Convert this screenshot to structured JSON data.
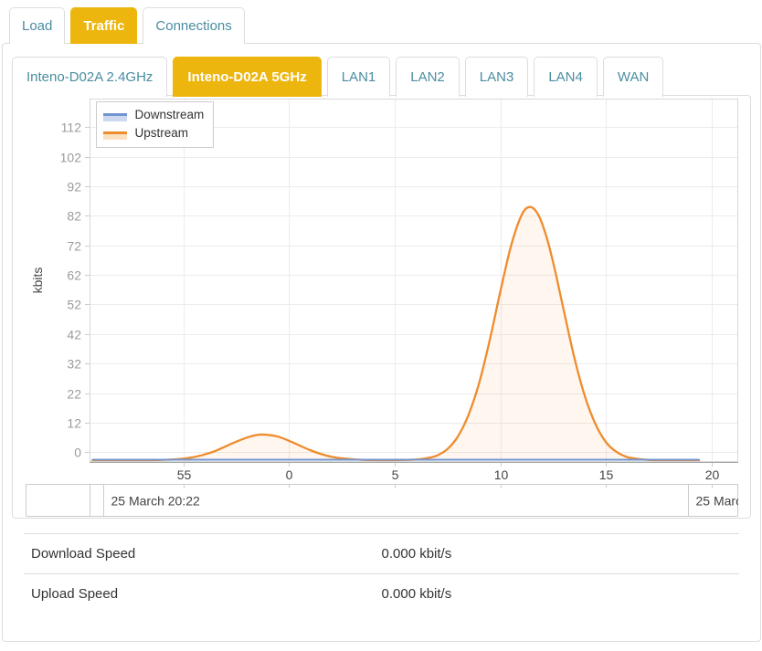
{
  "main_tabs": {
    "items": [
      {
        "label": "Load",
        "active": false
      },
      {
        "label": "Traffic",
        "active": true
      },
      {
        "label": "Connections",
        "active": false
      }
    ]
  },
  "interface_tabs": {
    "items": [
      {
        "label": "Inteno-D02A 2.4GHz",
        "active": false
      },
      {
        "label": "Inteno-D02A 5GHz",
        "active": true
      },
      {
        "label": "LAN1",
        "active": false
      },
      {
        "label": "LAN2",
        "active": false
      },
      {
        "label": "LAN3",
        "active": false
      },
      {
        "label": "LAN4",
        "active": false
      },
      {
        "label": "WAN",
        "active": false
      }
    ]
  },
  "colors": {
    "accent_yellow": "#edb60e",
    "tab_text_teal": "#4a8da0",
    "downstream": "#7295d0",
    "downstream_tint": "#ccd9ef",
    "upstream": "#ef8c2d",
    "upstream_tint": "#fbdfc2",
    "upstream_area_fill": "rgba(239,140,45,0.08)",
    "grid": "#ececec",
    "plot_border": "#d8d8d8",
    "axis_line": "#a6a6a6",
    "tick_mark": "#cccccc",
    "y_label_text": "#9b9b9b",
    "x_label_text": "#444444"
  },
  "chart_data": {
    "type": "area",
    "title": "",
    "ylabel": "kbits",
    "y_ticks": [
      0,
      12,
      22,
      32,
      42,
      52,
      62,
      72,
      82,
      92,
      102,
      112
    ],
    "ylim_display": "0 to 112 kbits, equally spaced ticks",
    "x_ticks": [
      {
        "label": "55",
        "t": -5
      },
      {
        "label": "0",
        "t": 0
      },
      {
        "label": "5",
        "t": 5
      },
      {
        "label": "10",
        "t": 10
      },
      {
        "label": "15",
        "t": 15
      },
      {
        "label": "20",
        "t": 20
      }
    ],
    "x_unit": "minutes",
    "date_cells": [
      {
        "label": "",
        "start_t": -9.43
      },
      {
        "label": "25 March 20:22",
        "start_t": -8.79
      },
      {
        "label": "25 Marc",
        "start_t": 18.87
      }
    ],
    "legend": {
      "position": "top-left",
      "entries": [
        "Downstream",
        "Upstream"
      ]
    },
    "series": [
      {
        "name": "Downstream",
        "color": "#7295d0",
        "points": [
          [
            -9.3,
            0
          ],
          [
            19.4,
            0
          ]
        ]
      },
      {
        "name": "Upstream",
        "color": "#ef8c2d",
        "points": [
          [
            -9.3,
            0
          ],
          [
            -8.5,
            0
          ],
          [
            -8,
            0
          ],
          [
            -7.5,
            0
          ],
          [
            -7,
            0
          ],
          [
            -6.5,
            0
          ],
          [
            -6,
            0.1
          ],
          [
            -5.5,
            0.2
          ],
          [
            -5,
            0.5
          ],
          [
            -4.5,
            1
          ],
          [
            -4,
            1.8
          ],
          [
            -3.5,
            2.9
          ],
          [
            -3,
            4.4
          ],
          [
            -2.5,
            5.9
          ],
          [
            -2,
            7.2
          ],
          [
            -1.5,
            8.1
          ],
          [
            -1,
            8.1
          ],
          [
            -0.5,
            7.5
          ],
          [
            0,
            6.2
          ],
          [
            0.5,
            4.7
          ],
          [
            1,
            3.2
          ],
          [
            1.5,
            2
          ],
          [
            2,
            1.1
          ],
          [
            2.5,
            0.6
          ],
          [
            3,
            0.3
          ],
          [
            3.5,
            0.1
          ],
          [
            4,
            0
          ],
          [
            4.5,
            0
          ],
          [
            5,
            0
          ],
          [
            5.5,
            0.1
          ],
          [
            6,
            0.2
          ],
          [
            6.5,
            0.6
          ],
          [
            7,
            1.5
          ],
          [
            7.5,
            3.6
          ],
          [
            8,
            7.7
          ],
          [
            8.5,
            14.8
          ],
          [
            9,
            25.6
          ],
          [
            9.5,
            40.1
          ],
          [
            10,
            56.5
          ],
          [
            10.5,
            71.8
          ],
          [
            11,
            82.2
          ],
          [
            11.4,
            85
          ],
          [
            11.8,
            82.2
          ],
          [
            12.2,
            74.4
          ],
          [
            12.6,
            63
          ],
          [
            13,
            49.9
          ],
          [
            13.5,
            33.9
          ],
          [
            14,
            20.8
          ],
          [
            14.5,
            11.5
          ],
          [
            15,
            5.7
          ],
          [
            15.5,
            2.6
          ],
          [
            16,
            1
          ],
          [
            16.5,
            0.4
          ],
          [
            17,
            0.1
          ],
          [
            17.5,
            0
          ],
          [
            18,
            0
          ],
          [
            18.5,
            0
          ],
          [
            19,
            0
          ],
          [
            19.4,
            0
          ]
        ]
      }
    ]
  },
  "speed_table": {
    "rows": [
      {
        "label": "Download Speed",
        "value": "0.000 kbit/s"
      },
      {
        "label": "Upload Speed",
        "value": "0.000 kbit/s"
      }
    ]
  }
}
